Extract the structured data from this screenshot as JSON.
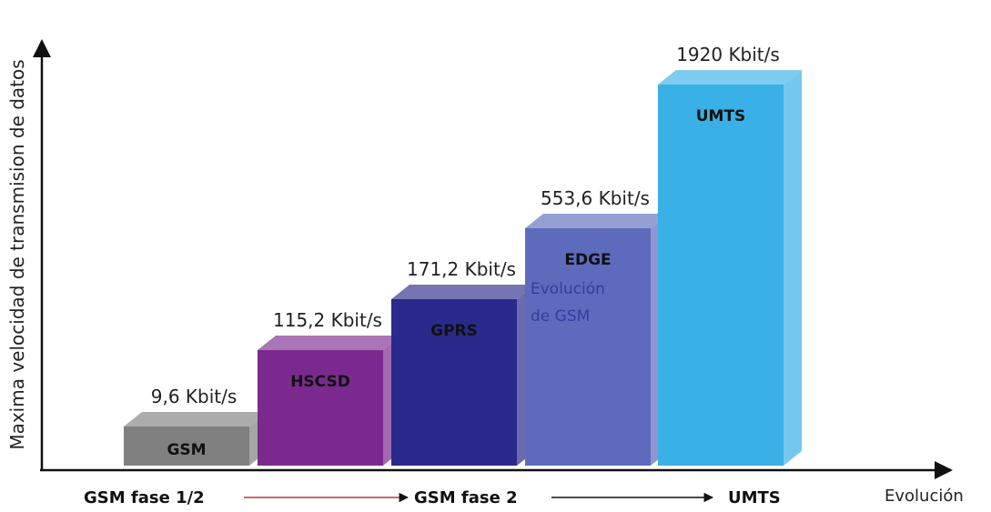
{
  "chart_data": {
    "type": "bar",
    "ylabel": "Maxima velocidad de transmision de datos",
    "xlabel": "Evolución",
    "categories": [
      "GSM",
      "HSCSD",
      "GPRS",
      "EDGE",
      "UMTS"
    ],
    "values": [
      9.6,
      115.2,
      171.2,
      553.6,
      1920
    ],
    "value_labels": [
      "9,6 Kbit/s",
      "115,2 Kbit/s",
      "171,2 Kbit/s",
      "553,6 Kbit/s",
      "1920 Kbit/s"
    ],
    "extra_text": {
      "EDGE": [
        "Evolución",
        "de GSM"
      ]
    },
    "colors": [
      "#808080",
      "#7a2a8e",
      "#2a2a8c",
      "#5e6bbd",
      "#39b0e6"
    ],
    "phases": [
      "GSM fase 1/2",
      "GSM fase 2",
      "UMTS"
    ],
    "grid": false,
    "legend": "none"
  }
}
